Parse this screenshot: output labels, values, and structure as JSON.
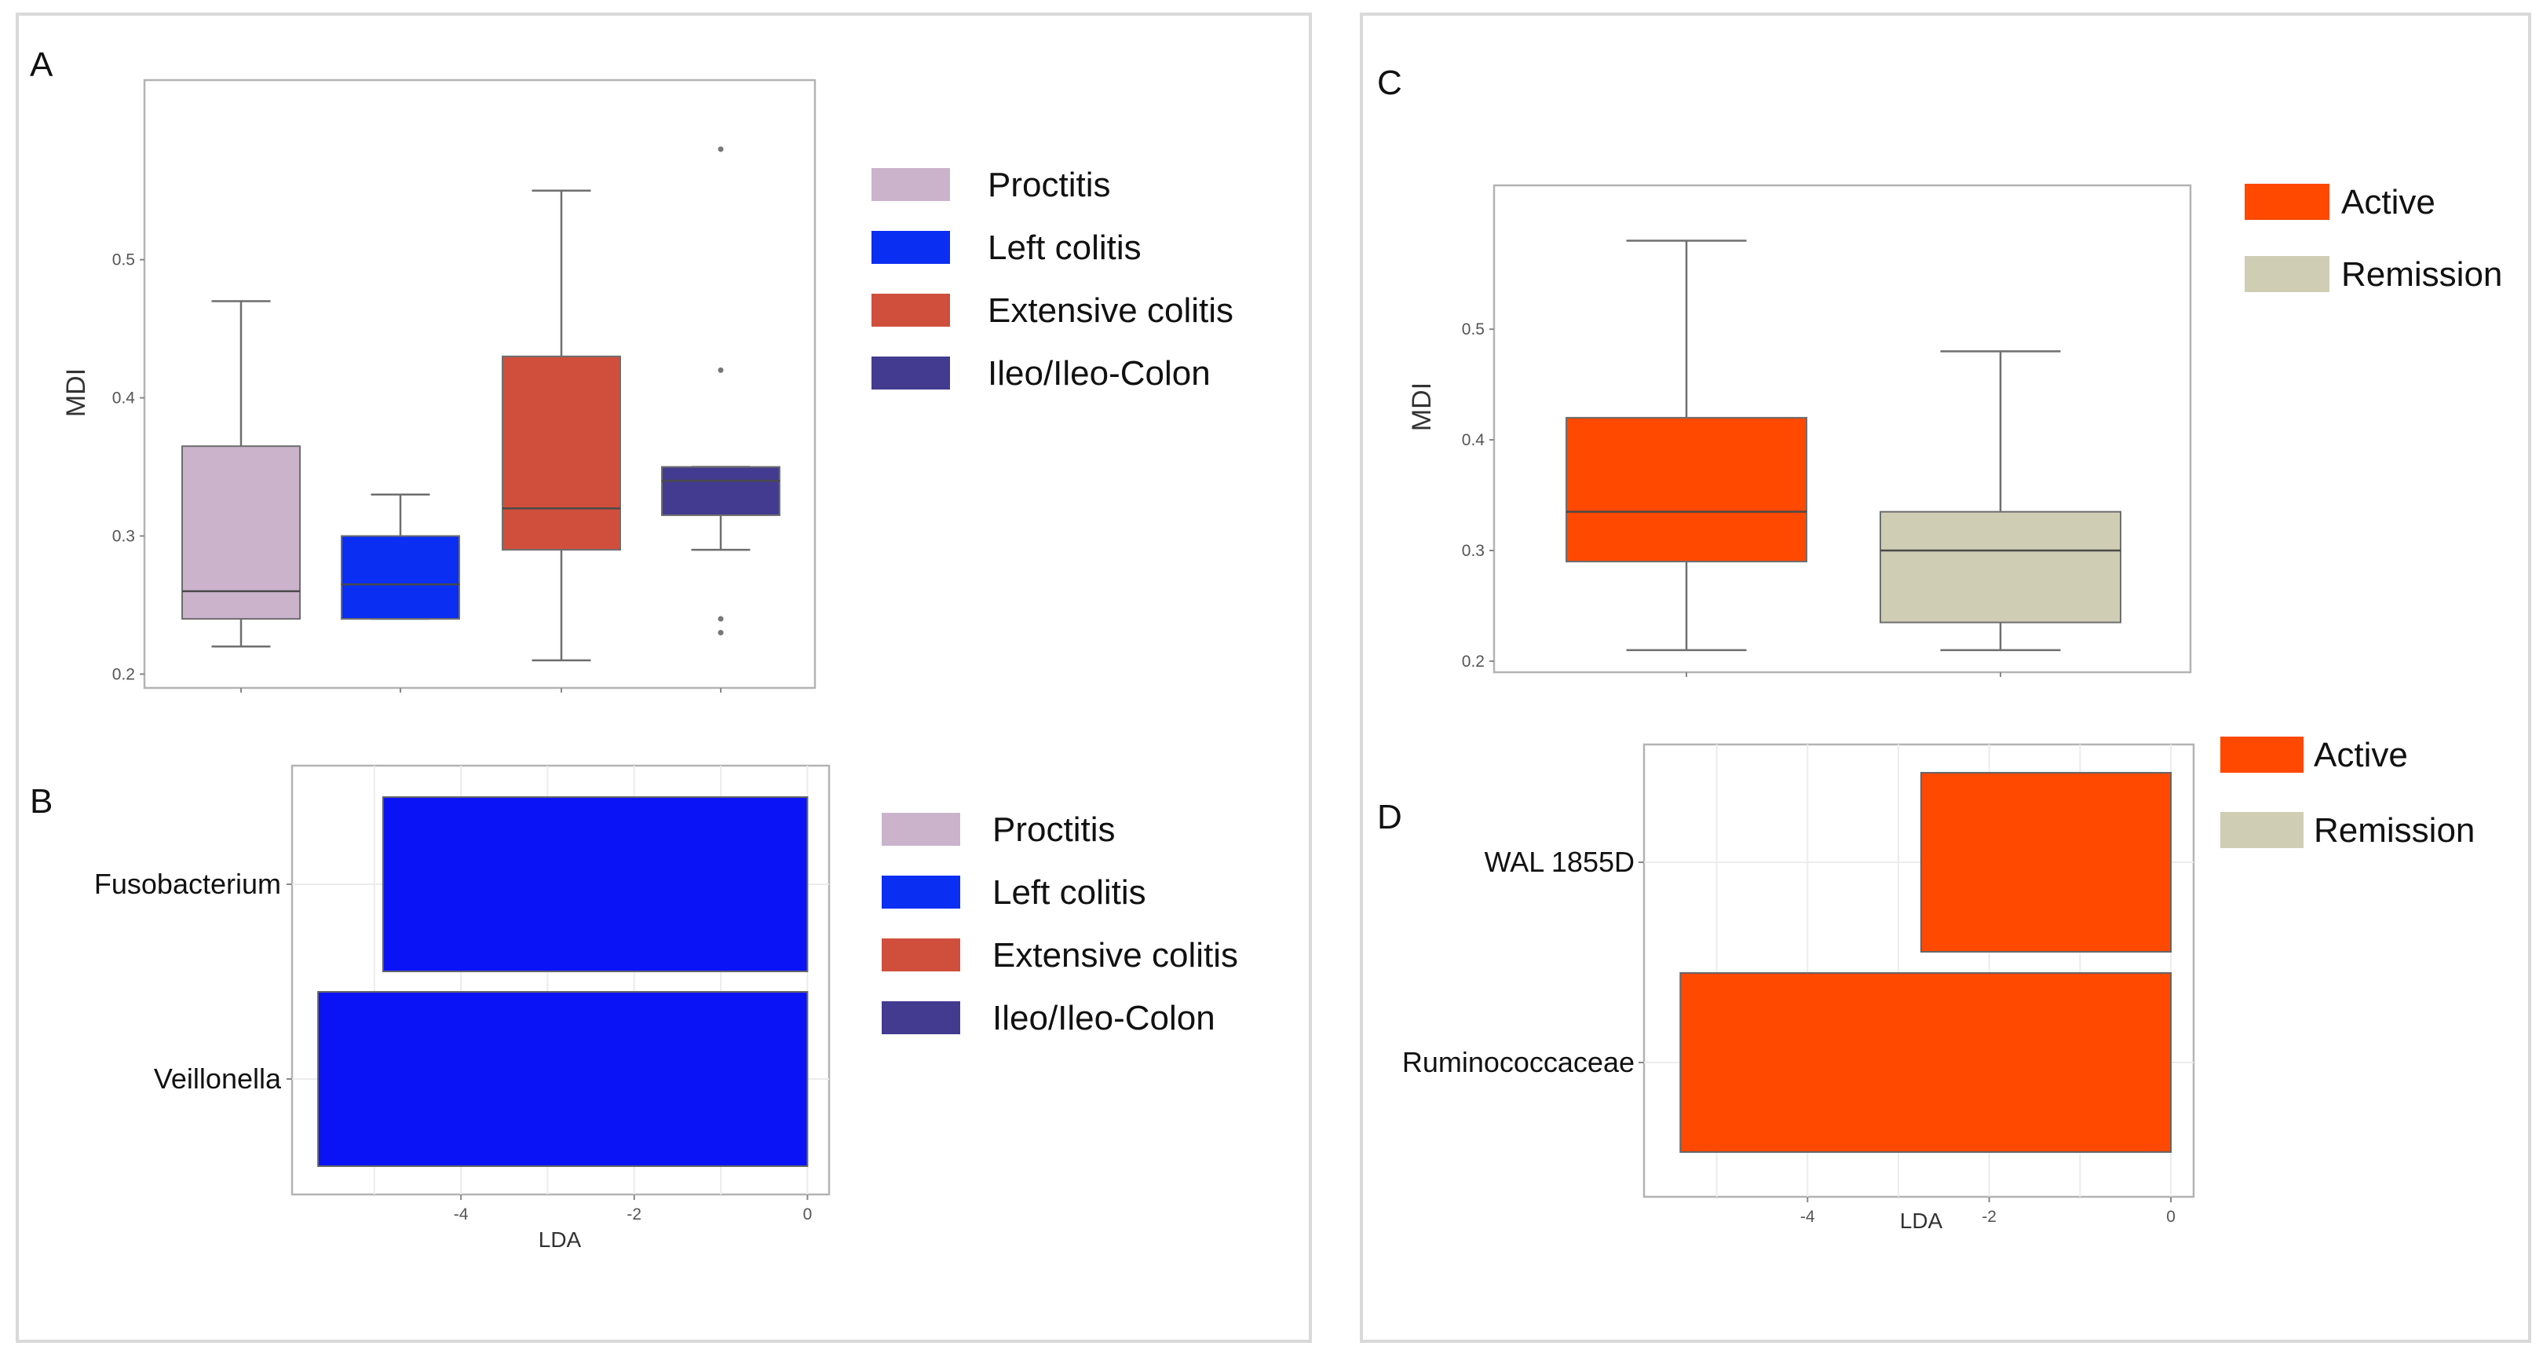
{
  "chart_data": [
    {
      "panel": "A",
      "type": "box",
      "xlabel": "",
      "ylabel": "MDI",
      "ylim": [
        0.19,
        0.63
      ],
      "yticks": [
        "0.2",
        "0.3",
        "0.4",
        "0.5"
      ],
      "categories": [
        "Proctitis",
        "Left colitis",
        "Extensive colitis",
        "Ileo/Ileo-Colon"
      ],
      "boxes": [
        {
          "name": "Proctitis",
          "min": 0.22,
          "q1": 0.24,
          "median": 0.26,
          "q3": 0.365,
          "max": 0.47,
          "outliers": []
        },
        {
          "name": "Left colitis",
          "min": 0.24,
          "q1": 0.24,
          "median": 0.265,
          "q3": 0.3,
          "max": 0.33,
          "outliers": []
        },
        {
          "name": "Extensive colitis",
          "min": 0.21,
          "q1": 0.29,
          "median": 0.32,
          "q3": 0.43,
          "max": 0.55,
          "outliers": []
        },
        {
          "name": "Ileo/Ileo-Colon",
          "min": 0.29,
          "q1": 0.315,
          "median": 0.34,
          "q3": 0.35,
          "max": 0.35,
          "outliers": [
            0.58,
            0.42,
            0.24,
            0.23
          ]
        }
      ],
      "legend": [
        {
          "label": "Proctitis",
          "color": "#cbb3cc"
        },
        {
          "label": "Left colitis",
          "color": "#0a2ef2"
        },
        {
          "label": "Extensive colitis",
          "color": "#cf4f3c"
        },
        {
          "label": "Ileo/Ileo-Colon",
          "color": "#433b8f"
        }
      ],
      "legend_position": "right"
    },
    {
      "panel": "B",
      "type": "bar",
      "orientation": "horizontal",
      "xlabel": "LDA",
      "ylabel": "",
      "xlim": [
        -5.95,
        0.25
      ],
      "xticks": [
        "-4",
        "-2",
        "0"
      ],
      "categories": [
        "Fusobacterium",
        "Veillonella"
      ],
      "values": [
        -4.9,
        -5.65
      ],
      "bar_color": "#0a13f5",
      "legend": [
        {
          "label": "Proctitis",
          "color": "#cbb3cc"
        },
        {
          "label": "Left colitis",
          "color": "#0a2ef2"
        },
        {
          "label": "Extensive colitis",
          "color": "#cf4f3c"
        },
        {
          "label": "Ileo/Ileo-Colon",
          "color": "#433b8f"
        }
      ],
      "legend_position": "right"
    },
    {
      "panel": "C",
      "type": "box",
      "xlabel": "",
      "ylabel": "MDI",
      "ylim": [
        0.19,
        0.63
      ],
      "yticks": [
        "0.2",
        "0.3",
        "0.4",
        "0.5"
      ],
      "categories": [
        "Active",
        "Remission"
      ],
      "boxes": [
        {
          "name": "Active",
          "min": 0.21,
          "q1": 0.29,
          "median": 0.335,
          "q3": 0.42,
          "max": 0.58,
          "outliers": []
        },
        {
          "name": "Remission",
          "min": 0.21,
          "q1": 0.235,
          "median": 0.3,
          "q3": 0.335,
          "max": 0.48,
          "outliers": []
        }
      ],
      "legend": [
        {
          "label": "Active",
          "color": "#ff4800"
        },
        {
          "label": "Remission",
          "color": "#cfcdb4"
        }
      ],
      "legend_position": "top-right"
    },
    {
      "panel": "D",
      "type": "bar",
      "orientation": "horizontal",
      "xlabel": "LDA",
      "ylabel": "",
      "xlim": [
        -5.8,
        0.25
      ],
      "xticks": [
        "-4",
        "-2",
        "0"
      ],
      "categories": [
        "WAL 1855D",
        "Ruminococcaceae"
      ],
      "values": [
        -2.75,
        -5.4
      ],
      "bar_color": "#ff4800",
      "legend": [
        {
          "label": "Active",
          "color": "#ff4800"
        },
        {
          "label": "Remission",
          "color": "#cfcdb4"
        }
      ],
      "legend_position": "top-right"
    }
  ]
}
